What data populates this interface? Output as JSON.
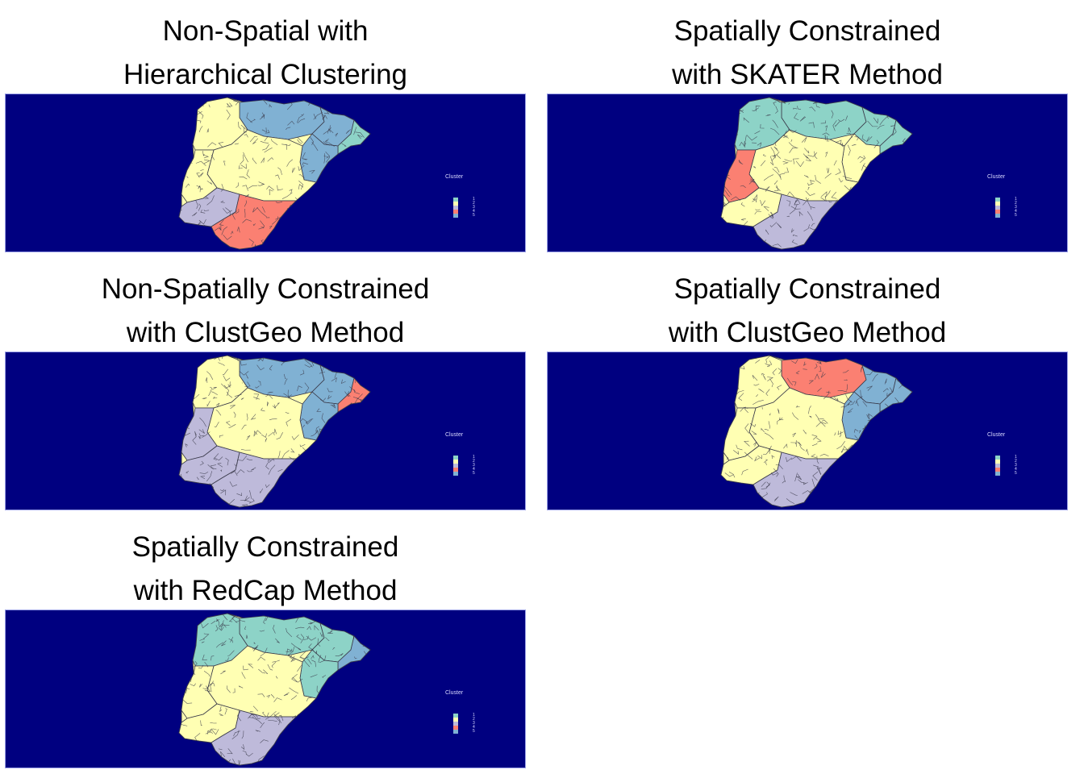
{
  "colors": {
    "background": "#000080",
    "cluster": [
      "#8dd3c7",
      "#ffffb3",
      "#bebada",
      "#fb8072",
      "#80b1d3"
    ],
    "boundary": "#3a3a4a"
  },
  "legend": {
    "title": "Cluster",
    "labels": [
      "1",
      "2",
      "3",
      "4",
      "5"
    ]
  },
  "panels": [
    {
      "title_line1": "Non-Spatial with",
      "title_line2": "Hierarchical Clustering",
      "regions": {
        "north": 4,
        "northwest": 1,
        "northeast": 4,
        "farnortheast": 0,
        "west": 1,
        "middle": 1,
        "southwest": 2,
        "southeast": 3,
        "east": 4
      }
    },
    {
      "title_line1": "Spatially Constrained",
      "title_line2": "with SKATER Method",
      "regions": {
        "north": 0,
        "northwest": 0,
        "northeast": 0,
        "farnortheast": 0,
        "west": 3,
        "middle": 1,
        "southwest": 1,
        "southeast": 2,
        "east": 1
      }
    },
    {
      "title_line1": "Non-Spatially Constrained",
      "title_line2": "with ClustGeo Method",
      "regions": {
        "north": 4,
        "northwest": 1,
        "northeast": 4,
        "farnortheast": 3,
        "west": 2,
        "middle": 1,
        "southwest": 2,
        "southeast": 2,
        "east": 4
      }
    },
    {
      "title_line1": "Spatially Constrained",
      "title_line2": "with ClustGeo Method",
      "regions": {
        "north": 3,
        "northwest": 1,
        "northeast": 4,
        "farnortheast": 4,
        "west": 1,
        "middle": 1,
        "southwest": 1,
        "southeast": 2,
        "east": 4
      }
    },
    {
      "title_line1": "Spatially Constrained",
      "title_line2": "with RedCap Method",
      "regions": {
        "north": 0,
        "northwest": 0,
        "northeast": 0,
        "farnortheast": 4,
        "west": 1,
        "middle": 1,
        "southwest": 1,
        "southeast": 2,
        "east": 0
      }
    }
  ]
}
